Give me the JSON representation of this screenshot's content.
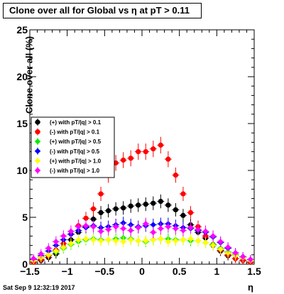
{
  "title": "Clone  over all for Global vs   η at pT > 0.11",
  "footer": "Sat Sep  9 12:32:19 2017",
  "chart_data": {
    "type": "scatter",
    "title": "Clone  over all for Global vs   η at pT > 0.11",
    "xlabel": "η",
    "ylabel": "Clone  over all (%)",
    "xlim": [
      -1.5,
      1.5
    ],
    "ylim": [
      0,
      25
    ],
    "x_ticks": [
      "−1.5",
      "−1",
      "−0.5",
      "0",
      "0.5",
      "1",
      "1.5"
    ],
    "y_ticks": [
      "0",
      "5",
      "10",
      "15",
      "20",
      "25"
    ],
    "legend_position": "left",
    "series": [
      {
        "name": "(+) with pT/|q| > 0.1",
        "color": "#000000",
        "marker": "circle",
        "x": [
          -1.45,
          -1.35,
          -1.25,
          -1.15,
          -1.05,
          -0.95,
          -0.85,
          -0.75,
          -0.65,
          -0.55,
          -0.45,
          -0.35,
          -0.25,
          -0.15,
          -0.05,
          0.05,
          0.15,
          0.25,
          0.35,
          0.45,
          0.55,
          0.65,
          0.75,
          0.85,
          0.95,
          1.05,
          1.15,
          1.25,
          1.35,
          1.45
        ],
        "y": [
          0.2,
          0.4,
          0.7,
          1.1,
          1.8,
          2.6,
          3.4,
          4.0,
          4.8,
          5.5,
          5.7,
          5.9,
          6.0,
          6.2,
          6.3,
          6.4,
          6.5,
          6.7,
          6.3,
          5.8,
          5.2,
          4.2,
          3.4,
          2.8,
          2.0,
          1.4,
          0.9,
          0.6,
          0.4,
          0.2
        ]
      },
      {
        "name": "(-) with pT/|q| > 0.1",
        "color": "#ff0000",
        "marker": "circle",
        "x": [
          -1.45,
          -1.35,
          -1.25,
          -1.15,
          -1.05,
          -0.95,
          -0.85,
          -0.75,
          -0.65,
          -0.55,
          -0.45,
          -0.35,
          -0.25,
          -0.15,
          -0.05,
          0.05,
          0.15,
          0.25,
          0.35,
          0.45,
          0.55,
          0.65,
          0.75,
          0.85,
          0.95,
          1.05,
          1.15,
          1.25,
          1.35,
          1.45
        ],
        "y": [
          0.2,
          0.5,
          0.9,
          1.5,
          2.2,
          3.2,
          4.1,
          4.9,
          5.9,
          7.5,
          9.5,
          10.8,
          11.1,
          11.3,
          12.0,
          12.0,
          12.3,
          12.7,
          11.2,
          9.5,
          7.5,
          5.5,
          4.0,
          3.0,
          2.1,
          1.5,
          1.0,
          0.6,
          0.4,
          0.2
        ]
      },
      {
        "name": "(+) with pT/|q| > 0.5",
        "color": "#00ee00",
        "marker": "diamond",
        "x": [
          -1.45,
          -1.35,
          -1.25,
          -1.15,
          -1.05,
          -0.95,
          -0.85,
          -0.75,
          -0.65,
          -0.55,
          -0.45,
          -0.35,
          -0.25,
          -0.15,
          -0.05,
          0.05,
          0.15,
          0.25,
          0.35,
          0.45,
          0.55,
          0.65,
          0.75,
          0.85,
          0.95,
          1.05,
          1.15,
          1.25,
          1.35,
          1.45
        ],
        "y": [
          0.4,
          0.7,
          1.0,
          1.3,
          1.7,
          2.1,
          2.4,
          2.6,
          2.7,
          2.6,
          2.6,
          2.7,
          2.8,
          2.7,
          2.5,
          2.4,
          2.6,
          2.7,
          2.7,
          2.6,
          2.6,
          2.5,
          2.5,
          2.3,
          2.1,
          1.7,
          1.3,
          1.0,
          0.7,
          0.4
        ]
      },
      {
        "name": "(-) with pT/|q| > 0.5",
        "color": "#0000ff",
        "marker": "diamond",
        "x": [
          -1.45,
          -1.35,
          -1.25,
          -1.15,
          -1.05,
          -0.95,
          -0.85,
          -0.75,
          -0.65,
          -0.55,
          -0.45,
          -0.35,
          -0.25,
          -0.15,
          -0.05,
          0.05,
          0.15,
          0.25,
          0.35,
          0.45,
          0.55,
          0.65,
          0.75,
          0.85,
          0.95,
          1.05,
          1.15,
          1.25,
          1.35,
          1.45
        ],
        "y": [
          0.5,
          0.9,
          1.4,
          2.0,
          2.6,
          3.2,
          3.6,
          3.9,
          4.1,
          3.9,
          4.0,
          4.2,
          4.4,
          4.2,
          4.0,
          4.1,
          4.2,
          4.3,
          4.3,
          4.1,
          3.9,
          3.8,
          3.6,
          3.4,
          2.9,
          2.3,
          1.7,
          1.2,
          0.8,
          0.5
        ]
      },
      {
        "name": "(+) with pT/|q| > 1.0",
        "color": "#ffff00",
        "marker": "diamond",
        "x": [
          -1.45,
          -1.35,
          -1.25,
          -1.15,
          -1.05,
          -0.95,
          -0.85,
          -0.75,
          -0.65,
          -0.55,
          -0.45,
          -0.35,
          -0.25,
          -0.15,
          -0.05,
          0.05,
          0.15,
          0.25,
          0.35,
          0.45,
          0.55,
          0.65,
          0.75,
          0.85,
          0.95,
          1.05,
          1.15,
          1.25,
          1.35,
          1.45
        ],
        "y": [
          0.4,
          0.7,
          1.0,
          1.4,
          1.8,
          2.2,
          2.6,
          2.7,
          2.6,
          2.5,
          2.6,
          2.5,
          2.4,
          2.6,
          2.5,
          2.5,
          2.6,
          2.7,
          2.4,
          2.5,
          2.6,
          2.7,
          2.5,
          2.3,
          2.0,
          1.6,
          1.2,
          0.9,
          0.7,
          0.4
        ]
      },
      {
        "name": "(-) with pT/|q| > 1.0",
        "color": "#ff00ff",
        "marker": "diamond",
        "x": [
          -1.45,
          -1.35,
          -1.25,
          -1.15,
          -1.05,
          -0.95,
          -0.85,
          -0.75,
          -0.65,
          -0.55,
          -0.45,
          -0.35,
          -0.25,
          -0.15,
          -0.05,
          0.05,
          0.15,
          0.25,
          0.35,
          0.45,
          0.55,
          0.65,
          0.75,
          0.85,
          0.95,
          1.05,
          1.15,
          1.25,
          1.35,
          1.45
        ],
        "y": [
          0.6,
          1.1,
          1.7,
          2.4,
          3.0,
          3.5,
          4.0,
          4.1,
          4.0,
          3.5,
          3.7,
          4.0,
          3.8,
          3.6,
          3.9,
          4.3,
          3.4,
          3.8,
          4.0,
          3.8,
          3.6,
          3.9,
          3.7,
          3.5,
          3.0,
          2.4,
          1.8,
          1.2,
          0.8,
          0.5
        ]
      }
    ],
    "legend_labels": [
      "(+) with pT/|q| > 0.1",
      "(-) with pT/|q| > 0.1",
      "(+) with pT/|q| > 0.5",
      "(-) with pT/|q| > 0.5",
      "(+) with pT/|q| > 1.0",
      "(-) with pT/|q| > 1.0"
    ]
  }
}
